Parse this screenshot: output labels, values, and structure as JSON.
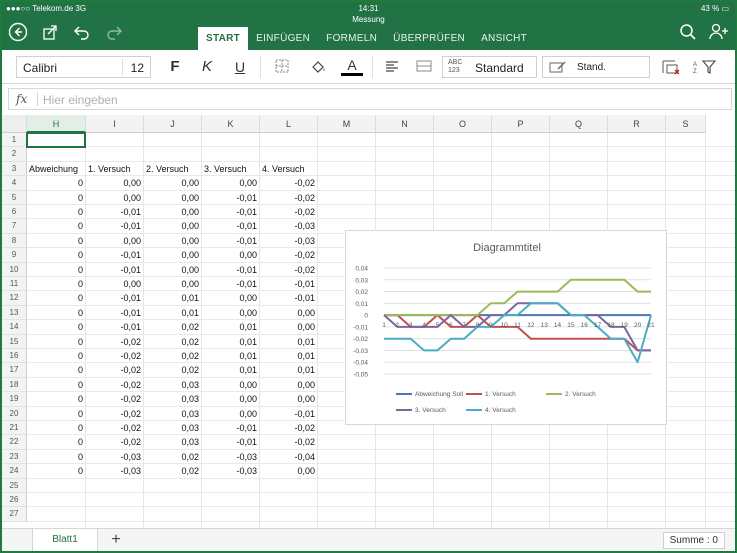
{
  "status": {
    "carrier": "●●●○○ Telekom.de  3G",
    "time": "14:31",
    "battery": "43 % ▭"
  },
  "document": {
    "title": "Messung"
  },
  "tabs": [
    {
      "label": "START",
      "active": true
    },
    {
      "label": "EINFÜGEN"
    },
    {
      "label": "FORMELN"
    },
    {
      "label": "ÜBERPRÜFEN"
    },
    {
      "label": "ANSICHT"
    }
  ],
  "ribbon": {
    "font_name": "Calibri",
    "font_size": "12",
    "bold_label": "F",
    "italic_label": "K",
    "underline_label": "U",
    "font_color_label": "A",
    "number_format_abc": "ABC",
    "number_format_123": "123",
    "number_format": "Standard",
    "cell_style": "Stand."
  },
  "formula_bar": {
    "fx": "fx",
    "placeholder": "Hier eingeben"
  },
  "columns": [
    "H",
    "I",
    "J",
    "K",
    "L",
    "M",
    "N",
    "O",
    "P",
    "Q",
    "R",
    "S"
  ],
  "rows": [
    "1",
    "2",
    "3",
    "4",
    "5",
    "6",
    "7",
    "8",
    "9",
    "10",
    "11",
    "12",
    "13",
    "14",
    "15",
    "16",
    "17",
    "18",
    "19",
    "20",
    "21",
    "22",
    "23",
    "24",
    "25",
    "26",
    "27"
  ],
  "table": {
    "headers": [
      "Abweichung",
      "1. Versuch",
      "2. Versuch",
      "3. Versuch",
      "4. Versuch"
    ],
    "values": [
      [
        "0",
        "0,00",
        "0,00",
        "0,00",
        "-0,02"
      ],
      [
        "0",
        "0,00",
        "0,00",
        "-0,01",
        "-0,02"
      ],
      [
        "0",
        "-0,01",
        "0,00",
        "-0,01",
        "-0,02"
      ],
      [
        "0",
        "-0,01",
        "0,00",
        "-0,01",
        "-0,03"
      ],
      [
        "0",
        "0,00",
        "0,00",
        "-0,01",
        "-0,03"
      ],
      [
        "0",
        "-0,01",
        "0,00",
        "0,00",
        "-0,02"
      ],
      [
        "0",
        "-0,01",
        "0,00",
        "-0,01",
        "-0,02"
      ],
      [
        "0",
        "0,00",
        "0,00",
        "-0,01",
        "-0,01"
      ],
      [
        "0",
        "-0,01",
        "0,01",
        "0,00",
        "-0,01"
      ],
      [
        "0",
        "-0,01",
        "0,01",
        "0,00",
        "0,00"
      ],
      [
        "0",
        "-0,01",
        "0,02",
        "0,01",
        "0,00"
      ],
      [
        "0",
        "-0,02",
        "0,02",
        "0,01",
        "0,01"
      ],
      [
        "0",
        "-0,02",
        "0,02",
        "0,01",
        "0,01"
      ],
      [
        "0",
        "-0,02",
        "0,02",
        "0,01",
        "0,01"
      ],
      [
        "0",
        "-0,02",
        "0,03",
        "0,00",
        "0,00"
      ],
      [
        "0",
        "-0,02",
        "0,03",
        "0,00",
        "0,00"
      ],
      [
        "0",
        "-0,02",
        "0,03",
        "0,00",
        "-0,01"
      ],
      [
        "0",
        "-0,02",
        "0,03",
        "-0,01",
        "-0,02"
      ],
      [
        "0",
        "-0,02",
        "0,03",
        "-0,01",
        "-0,02"
      ],
      [
        "0",
        "-0,03",
        "0,02",
        "-0,03",
        "-0,04"
      ],
      [
        "0",
        "-0,03",
        "0,02",
        "-0,03",
        "0,00"
      ]
    ]
  },
  "chart_data": {
    "type": "line",
    "title": "Diagrammtitel",
    "ylim": [
      -0.05,
      0.04
    ],
    "yticks": [
      "0,04",
      "0,03",
      "0,02",
      "0,01",
      "0",
      "-0,01",
      "-0,02",
      "-0,03",
      "-0,04",
      "-0,05"
    ],
    "categories": [
      "1",
      "2",
      "3",
      "4",
      "5",
      "6",
      "7",
      "8",
      "9",
      "10",
      "11",
      "12",
      "13",
      "14",
      "15",
      "16",
      "17",
      "18",
      "19",
      "20",
      "21"
    ],
    "grid": true,
    "legend_position": "bottom",
    "series": [
      {
        "name": "Abweichung Soll",
        "color": "#4a76b8",
        "values": [
          0,
          0,
          0,
          0,
          0,
          0,
          0,
          0,
          0,
          0,
          0,
          0,
          0,
          0,
          0,
          0,
          0,
          0,
          0,
          0,
          0
        ]
      },
      {
        "name": "1. Versuch",
        "color": "#c0504d",
        "values": [
          0,
          0,
          -0.01,
          -0.01,
          0,
          -0.01,
          -0.01,
          0,
          -0.01,
          -0.01,
          -0.01,
          -0.02,
          -0.02,
          -0.02,
          -0.02,
          -0.02,
          -0.02,
          -0.02,
          -0.02,
          -0.03,
          -0.03
        ]
      },
      {
        "name": "2. Versuch",
        "color": "#9bbb59",
        "values": [
          0,
          0,
          0,
          0,
          0,
          0,
          0,
          0,
          0.01,
          0.01,
          0.02,
          0.02,
          0.02,
          0.02,
          0.03,
          0.03,
          0.03,
          0.03,
          0.03,
          0.02,
          0.02
        ]
      },
      {
        "name": "3. Versuch",
        "color": "#8064a2",
        "values": [
          0,
          -0.01,
          -0.01,
          -0.01,
          -0.01,
          0,
          -0.01,
          -0.01,
          0,
          0,
          0.01,
          0.01,
          0.01,
          0.01,
          0,
          0,
          0,
          -0.01,
          -0.01,
          -0.03,
          -0.03
        ]
      },
      {
        "name": "4. Versuch",
        "color": "#4bacc6",
        "values": [
          -0.02,
          -0.02,
          -0.02,
          -0.03,
          -0.03,
          -0.02,
          -0.02,
          -0.01,
          -0.01,
          0,
          0,
          0.01,
          0.01,
          0.01,
          0,
          0,
          -0.01,
          -0.02,
          -0.02,
          -0.04,
          0
        ]
      }
    ]
  },
  "bottom": {
    "sheet_tab": "Blatt1",
    "add_sheet": "+",
    "summe": "Summe : 0"
  }
}
